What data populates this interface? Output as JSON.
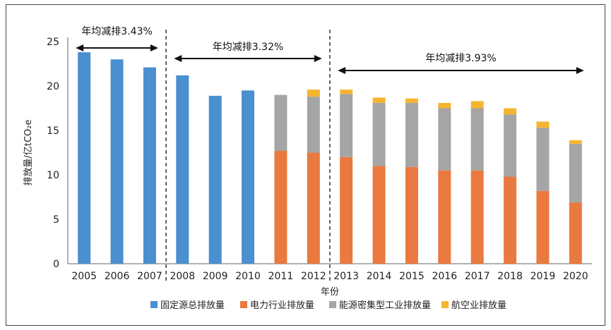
{
  "chart_data": {
    "type": "bar",
    "stacked": true,
    "ylabel": "排放量/亿tCO₂e",
    "xlabel": "年份",
    "ylim": [
      0,
      25
    ],
    "yticks": [
      "0",
      "5",
      "10",
      "15",
      "20",
      "25"
    ],
    "grid": false,
    "legend_position": "bottom",
    "categories": [
      "2005",
      "2006",
      "2007",
      "2008",
      "2009",
      "2010",
      "2011",
      "2012",
      "2013",
      "2014",
      "2015",
      "2016",
      "2017",
      "2018",
      "2019",
      "2020"
    ],
    "series": [
      {
        "name": "固定源总排放量",
        "color": "#4a8fcf",
        "values": [
          23.8,
          23.0,
          22.1,
          21.2,
          18.9,
          19.5,
          null,
          null,
          null,
          null,
          null,
          null,
          null,
          null,
          null,
          null
        ]
      },
      {
        "name": "电力行业排放量",
        "color": "#e9793f",
        "values": [
          null,
          null,
          null,
          null,
          null,
          null,
          12.7,
          12.5,
          12.0,
          11.0,
          10.9,
          10.5,
          10.5,
          9.8,
          8.2,
          6.9
        ]
      },
      {
        "name": "能源密集型工业排放量",
        "color": "#a5a5a5",
        "values": [
          null,
          null,
          null,
          null,
          null,
          null,
          6.3,
          6.3,
          7.1,
          7.1,
          7.2,
          7.0,
          7.0,
          7.0,
          7.1,
          6.6
        ]
      },
      {
        "name": "航空业排放量",
        "color": "#f6b530",
        "values": [
          null,
          null,
          null,
          null,
          null,
          null,
          0,
          0.8,
          0.5,
          0.6,
          0.5,
          0.6,
          0.8,
          0.7,
          0.7,
          0.4
        ]
      }
    ],
    "annotations": [
      {
        "text": "年均减排3.43%",
        "from": "2005",
        "to": "2007"
      },
      {
        "text": "年均减排3.32%",
        "from": "2008",
        "to": "2012"
      },
      {
        "text": "年均减排3.93%",
        "from": "2013",
        "to": "2020"
      }
    ],
    "dividers_after": [
      "2007",
      "2012"
    ]
  }
}
